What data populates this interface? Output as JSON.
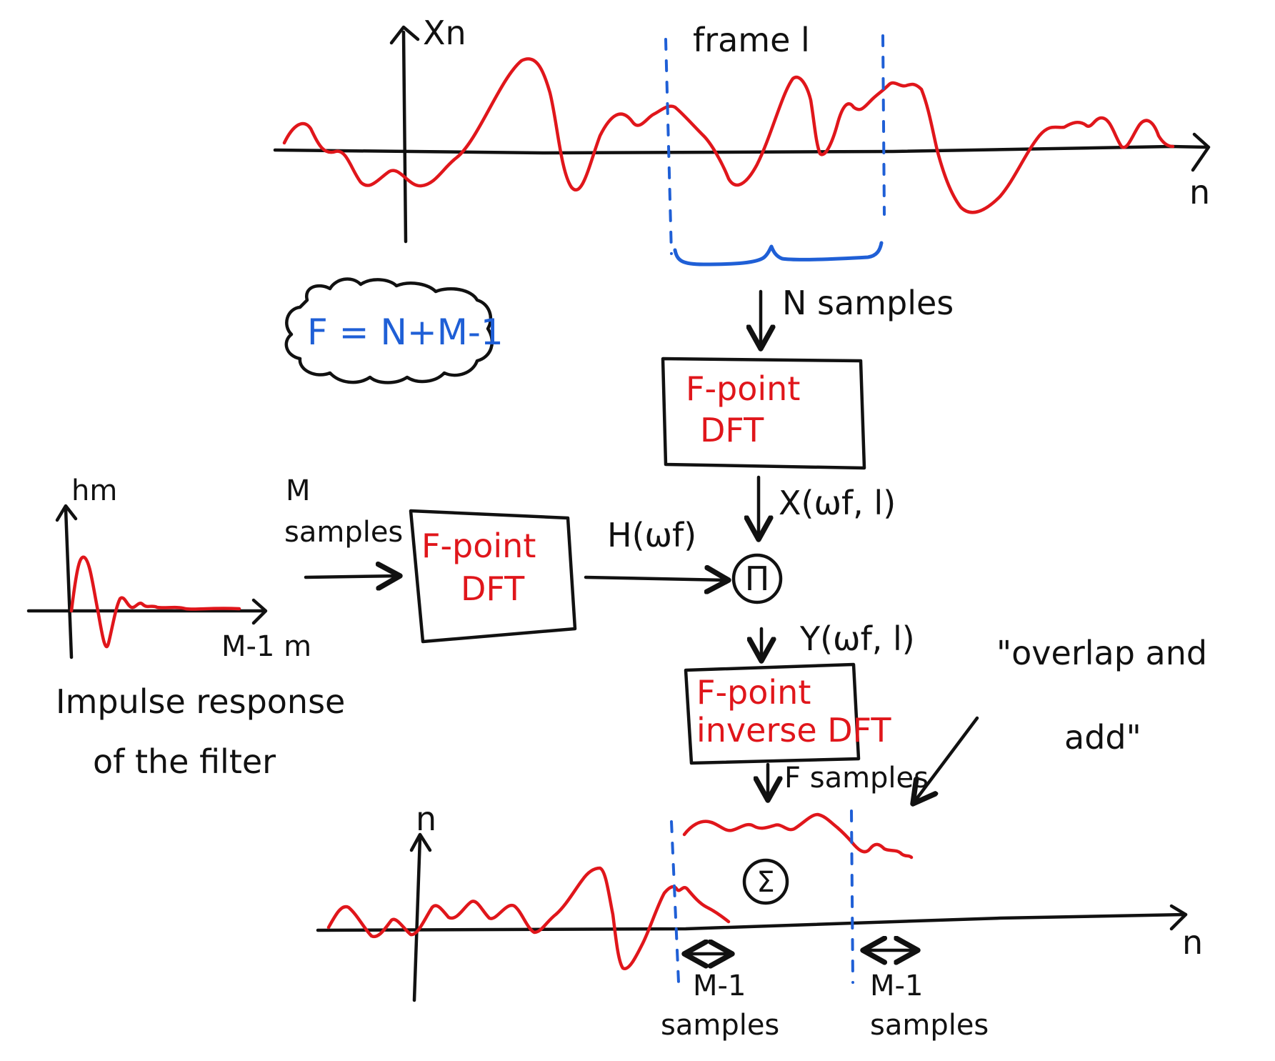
{
  "top_signal": {
    "y_label": "Xn",
    "x_label": "n",
    "frame_label": "frame l",
    "brace_label": "N samples"
  },
  "formula": "F = N+M-1",
  "dft_block": {
    "line1": "F-point",
    "line2": "DFT"
  },
  "dft_output_label": "X(ωf, l)",
  "filter": {
    "y_label": "hm",
    "x_end_label": "M-1 m",
    "caption_line1": "Impulse response",
    "caption_line2": "of the filter"
  },
  "filter_input_label_line1": "M",
  "filter_input_label_line2": "samples",
  "filter_dft_block": {
    "line1": "F-point",
    "line2": "DFT"
  },
  "filter_dft_output_label": "H(ωf)",
  "multiply_symbol": "Π",
  "product_label": "Y(ωf, l)",
  "idft_block": {
    "line1": "F-point",
    "line2": "inverse DFT"
  },
  "idft_output_label": "F samples",
  "overlap_label_line1": "\"overlap and",
  "overlap_label_line2": "add\"",
  "sum_symbol": "Σ",
  "bottom_signal": {
    "y_label": "n",
    "x_label": "n",
    "left_overlap_line1": "M-1",
    "left_overlap_line2": "samples",
    "right_overlap_line1": "M-1",
    "right_overlap_line2": "samples"
  },
  "colors": {
    "ink": "#111111",
    "signal": "#e0161b",
    "frame": "#1f5fd6"
  }
}
